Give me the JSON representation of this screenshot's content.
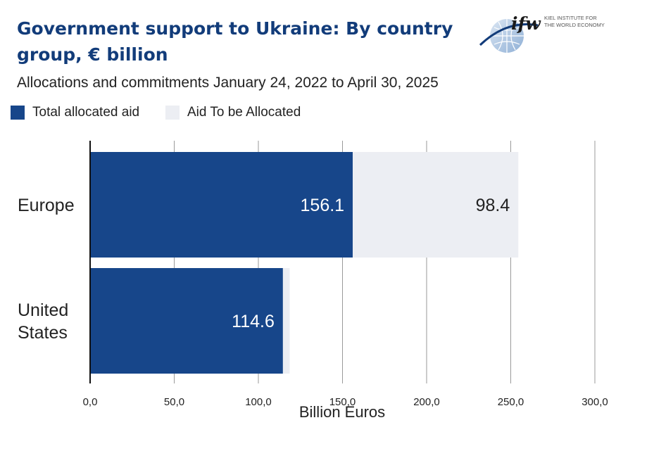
{
  "title": "Government support to Ukraine: By country group, € billion",
  "subtitle": "Allocations and commitments January 24, 2022 to April 30, 2025",
  "logo": {
    "mark": "ifw",
    "line1": "KIEL INSTITUTE FOR",
    "line2": "THE WORLD ECONOMY"
  },
  "colors": {
    "allocated": "#17468a",
    "to_be_allocated": "#eceef3",
    "title": "#123c7a"
  },
  "chart_data": {
    "type": "bar",
    "orientation": "horizontal",
    "stacked": true,
    "categories": [
      [
        "Europe"
      ],
      [
        "United",
        "States"
      ]
    ],
    "series": [
      {
        "name": "Total allocated aid",
        "values": [
          156.1,
          114.6
        ],
        "labels": [
          "156.1",
          "114.6"
        ]
      },
      {
        "name": "Aid To be Allocated",
        "values": [
          98.4,
          4.0
        ],
        "labels": [
          "98.4",
          ""
        ]
      }
    ],
    "xlabel": "Billion Euros",
    "xlim": [
      0,
      300
    ],
    "xticks": [
      0,
      50,
      100,
      150,
      200,
      250,
      300
    ],
    "xtick_labels": [
      "0,0",
      "50,0",
      "100,0",
      "150,0",
      "200,0",
      "250,0",
      "300,0"
    ],
    "grid": true,
    "legend_position": "top-left"
  }
}
